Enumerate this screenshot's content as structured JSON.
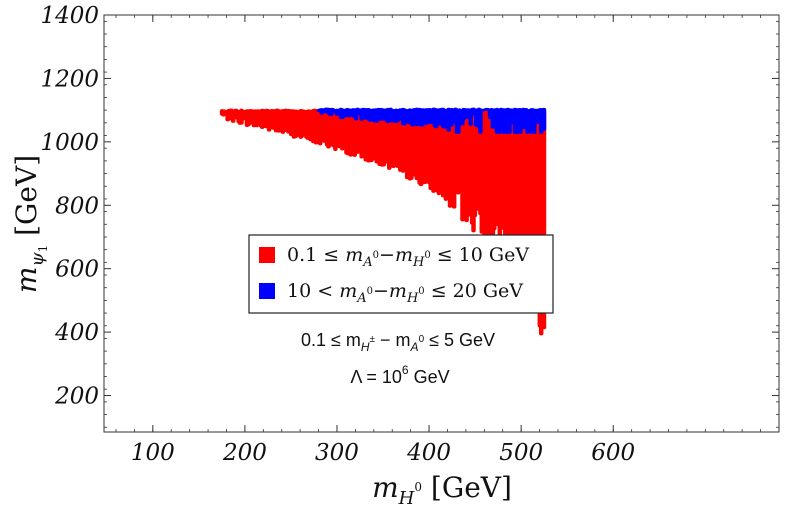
{
  "chart_data": {
    "type": "scatter",
    "xlabel": "m_{H^0} [GeV]",
    "ylabel": "m_{ψ_1} [GeV]",
    "xlim": [
      47,
      780
    ],
    "ylim": [
      85,
      1400
    ],
    "x_ticks": [
      100,
      200,
      300,
      400,
      500,
      600
    ],
    "y_ticks": [
      200,
      400,
      600,
      800,
      1000,
      1200,
      1400
    ],
    "grid": false,
    "legend_position": "center-left",
    "series": [
      {
        "name": "0.1 ≤ m_{A^0} − m_{H^0} ≤ 10 GeV",
        "color": "#ff0000",
        "boundary": {
          "upper_mass_limit": 1105,
          "x": [
            175,
            200,
            250,
            300,
            350,
            400,
            450,
            480,
            500,
            515,
            520,
            525
          ],
          "y_min": [
            1080,
            1060,
            1025,
            980,
            930,
            860,
            760,
            680,
            600,
            500,
            420,
            355
          ]
        }
      },
      {
        "name": "10 < m_{A^0} − m_{H^0} ≤ 20 GeV",
        "color": "#0000ff",
        "boundary": {
          "upper_mass_limit": 1108,
          "x": [
            280,
            300,
            350,
            400,
            450,
            500,
            525
          ],
          "y_min": [
            1100,
            1085,
            1070,
            1055,
            1040,
            1030,
            1030
          ]
        }
      }
    ],
    "annotations": [
      {
        "parts": [
          "0.1 ≤ m",
          "H",
          "±",
          " − m",
          "A",
          "0",
          " ≤ 5 GeV"
        ]
      },
      {
        "parts": [
          "Λ = 10",
          "6",
          " GeV"
        ]
      }
    ]
  }
}
